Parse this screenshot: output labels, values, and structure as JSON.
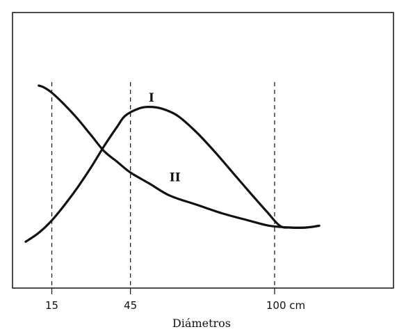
{
  "chart_data": {
    "type": "line",
    "title": "",
    "xlabel": "Diámetros",
    "ylabel": "",
    "xlim": [
      0,
      120
    ],
    "ylim": [
      0,
      100
    ],
    "grid": false,
    "x_ticks": [
      {
        "value": 15,
        "label": "15"
      },
      {
        "value": 45,
        "label": "45"
      },
      {
        "value": 100,
        "label": "100 cm"
      }
    ],
    "reference_lines": [
      15,
      45,
      100
    ],
    "series": [
      {
        "name": "I",
        "color": "#111111",
        "points": [
          [
            5,
            12
          ],
          [
            10,
            17
          ],
          [
            15,
            24
          ],
          [
            20,
            33
          ],
          [
            25,
            43
          ],
          [
            30,
            54
          ],
          [
            35,
            66
          ],
          [
            40,
            77
          ],
          [
            43,
            83
          ],
          [
            48,
            87
          ],
          [
            52,
            88
          ],
          [
            57,
            87
          ],
          [
            63,
            83
          ],
          [
            70,
            74
          ],
          [
            77,
            63
          ],
          [
            84,
            51
          ],
          [
            91,
            39
          ],
          [
            97,
            29
          ],
          [
            102,
            21
          ],
          [
            106,
            20
          ],
          [
            112,
            20
          ],
          [
            117,
            21
          ]
        ]
      },
      {
        "name": "II",
        "color": "#111111",
        "points": [
          [
            10,
            100
          ],
          [
            12,
            99
          ],
          [
            15,
            96
          ],
          [
            20,
            89
          ],
          [
            25,
            81
          ],
          [
            30,
            72
          ],
          [
            35,
            63
          ],
          [
            40,
            57
          ],
          [
            45,
            51
          ],
          [
            52,
            45
          ],
          [
            60,
            38
          ],
          [
            70,
            33
          ],
          [
            80,
            28
          ],
          [
            90,
            24
          ],
          [
            98,
            21
          ],
          [
            106,
            20
          ],
          [
            112,
            20
          ],
          [
            117,
            21
          ]
        ]
      }
    ],
    "series_labels": [
      {
        "series": 0,
        "text": "I",
        "x": 53,
        "y": 91
      },
      {
        "series": 1,
        "text": "II",
        "x": 62,
        "y": 46
      }
    ]
  }
}
